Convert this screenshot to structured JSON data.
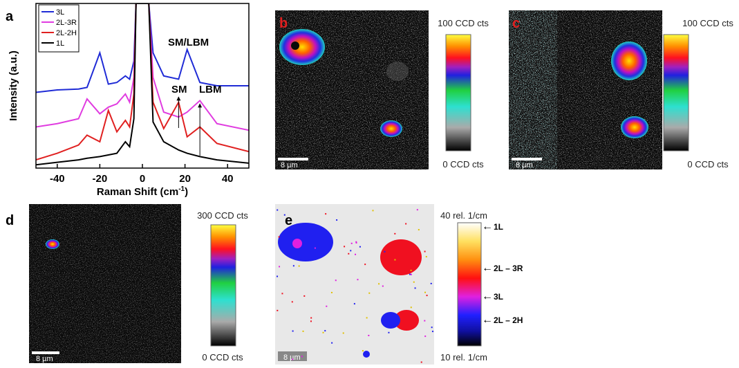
{
  "chart_data": {
    "type": "line",
    "panel": "a",
    "xlabel": [
      "Raman Shift (cm",
      "-1",
      ")"
    ],
    "ylabel": "Intensity (a.u.)",
    "x": [
      -50,
      -40,
      -30,
      -26,
      -20,
      -16,
      -12,
      -8,
      -6,
      -4,
      -3,
      3,
      5,
      10,
      17,
      21,
      27,
      35,
      50
    ],
    "xlim": [
      -50,
      50
    ],
    "xticks": [
      -40,
      -20,
      0,
      20,
      40
    ],
    "ylim": [
      0,
      10
    ],
    "legend": "upper left",
    "series": [
      {
        "name": "3L",
        "color": "#1f2bd6",
        "values": [
          4.6,
          4.75,
          4.8,
          4.9,
          7.0,
          5.1,
          5.2,
          5.6,
          5.4,
          6.5,
          10,
          10,
          7.0,
          5.6,
          5.4,
          7.2,
          5.2,
          5.0,
          5.0
        ]
      },
      {
        "name": "2L-3R",
        "color": "#e03ce0",
        "values": [
          2.5,
          2.7,
          3.0,
          4.2,
          3.3,
          3.7,
          3.9,
          4.5,
          4.0,
          5.5,
          10,
          10,
          5.5,
          3.4,
          3.1,
          3.4,
          4.1,
          2.7,
          2.3
        ]
      },
      {
        "name": "2L-2H",
        "color": "#e02020",
        "values": [
          0.5,
          0.9,
          1.4,
          2.0,
          1.6,
          3.5,
          2.2,
          2.9,
          2.5,
          4.5,
          10,
          10,
          4.0,
          2.4,
          4.0,
          1.9,
          2.5,
          1.5,
          1.0
        ]
      },
      {
        "name": "1L",
        "color": "#000000",
        "values": [
          0.2,
          0.35,
          0.5,
          0.6,
          0.7,
          0.8,
          0.9,
          1.6,
          1.3,
          3.0,
          10,
          10,
          2.8,
          1.6,
          1.1,
          0.9,
          0.7,
          0.5,
          0.3
        ]
      }
    ],
    "annotations": [
      "SM/LBM",
      "SM",
      "LBM"
    ]
  },
  "panels": {
    "b": {
      "label": "b",
      "scale_bar": "8 µm",
      "colorbar": [
        "100 CCD cts",
        "0 CCD cts"
      ]
    },
    "c": {
      "label": "c",
      "scale_bar": "8 µm",
      "colorbar": [
        "100 CCD cts",
        "0 CCD cts"
      ]
    },
    "d": {
      "label": "d",
      "scale_bar": "8 µm",
      "colorbar": [
        "300 CCD cts",
        "0 CCD cts"
      ]
    },
    "e": {
      "label": "e",
      "scale_bar": "8 µm",
      "colorbar": [
        "40 rel. 1/cm",
        "10 rel. 1/cm"
      ],
      "markers": [
        "1L",
        "2L – 3R",
        "3L",
        "2L – 2H"
      ]
    }
  }
}
